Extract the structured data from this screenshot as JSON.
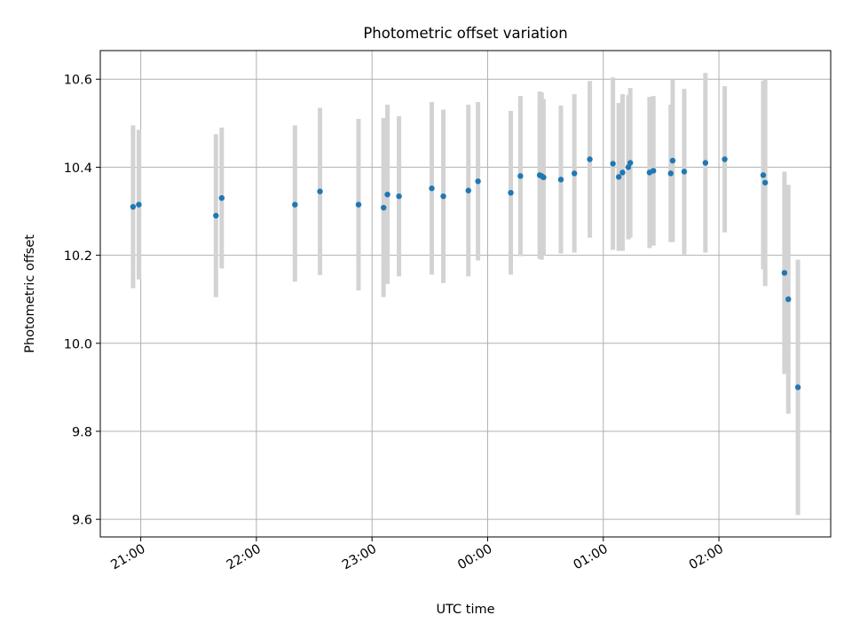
{
  "chart_data": {
    "type": "scatter",
    "title": "Photometric offset variation",
    "xlabel": "UTC time",
    "ylabel": "Photometric offset",
    "x_axis_type": "time",
    "xlim": [
      "20:39",
      "02:58"
    ],
    "ylim": [
      9.56,
      10.665
    ],
    "x_ticks": [
      "21:00",
      "22:00",
      "23:00",
      "00:00",
      "01:00",
      "02:00"
    ],
    "y_ticks": [
      9.6,
      9.8,
      10.0,
      10.2,
      10.4,
      10.6
    ],
    "y_tick_labels": [
      "9.6",
      "9.8",
      "10.0",
      "10.2",
      "10.4",
      "10.6"
    ],
    "grid": true,
    "legend": "none",
    "marker_color": "#1f77b4",
    "errorbar_color": "#d3d3d3",
    "points": [
      {
        "x": "20:56",
        "y": 10.31,
        "err_low": 10.125,
        "err_high": 10.495
      },
      {
        "x": "20:59",
        "y": 10.315,
        "err_low": 10.145,
        "err_high": 10.485
      },
      {
        "x": "21:39",
        "y": 10.29,
        "err_low": 10.105,
        "err_high": 10.475
      },
      {
        "x": "21:42",
        "y": 10.33,
        "err_low": 10.17,
        "err_high": 10.49
      },
      {
        "x": "22:20",
        "y": 10.315,
        "err_low": 10.14,
        "err_high": 10.495
      },
      {
        "x": "22:33",
        "y": 10.345,
        "err_low": 10.155,
        "err_high": 10.535
      },
      {
        "x": "22:53",
        "y": 10.315,
        "err_low": 10.12,
        "err_high": 10.51
      },
      {
        "x": "23:06",
        "y": 10.308,
        "err_low": 10.105,
        "err_high": 10.512
      },
      {
        "x": "23:08",
        "y": 10.338,
        "err_low": 10.135,
        "err_high": 10.542
      },
      {
        "x": "23:14",
        "y": 10.334,
        "err_low": 10.152,
        "err_high": 10.516
      },
      {
        "x": "23:31",
        "y": 10.352,
        "err_low": 10.156,
        "err_high": 10.548
      },
      {
        "x": "23:37",
        "y": 10.334,
        "err_low": 10.137,
        "err_high": 10.531
      },
      {
        "x": "23:50",
        "y": 10.347,
        "err_low": 10.152,
        "err_high": 10.542
      },
      {
        "x": "23:55",
        "y": 10.368,
        "err_low": 10.188,
        "err_high": 10.548
      },
      {
        "x": "00:12",
        "y": 10.342,
        "err_low": 10.156,
        "err_high": 10.528
      },
      {
        "x": "00:17",
        "y": 10.38,
        "err_low": 10.198,
        "err_high": 10.562
      },
      {
        "x": "00:27",
        "y": 10.382,
        "err_low": 10.192,
        "err_high": 10.572
      },
      {
        "x": "00:28",
        "y": 10.38,
        "err_low": 10.19,
        "err_high": 10.57
      },
      {
        "x": "00:29",
        "y": 10.377,
        "err_low": 10.199,
        "err_high": 10.555
      },
      {
        "x": "00:38",
        "y": 10.372,
        "err_low": 10.204,
        "err_high": 10.54
      },
      {
        "x": "00:45",
        "y": 10.386,
        "err_low": 10.206,
        "err_high": 10.566
      },
      {
        "x": "00:53",
        "y": 10.418,
        "err_low": 10.24,
        "err_high": 10.596
      },
      {
        "x": "01:05",
        "y": 10.408,
        "err_low": 10.212,
        "err_high": 10.604
      },
      {
        "x": "01:08",
        "y": 10.378,
        "err_low": 10.21,
        "err_high": 10.546
      },
      {
        "x": "01:10",
        "y": 10.388,
        "err_low": 10.21,
        "err_high": 10.566
      },
      {
        "x": "01:13",
        "y": 10.4,
        "err_low": 10.236,
        "err_high": 10.564
      },
      {
        "x": "01:14",
        "y": 10.41,
        "err_low": 10.24,
        "err_high": 10.58
      },
      {
        "x": "01:24",
        "y": 10.388,
        "err_low": 10.216,
        "err_high": 10.56
      },
      {
        "x": "01:26",
        "y": 10.392,
        "err_low": 10.222,
        "err_high": 10.562
      },
      {
        "x": "01:35",
        "y": 10.386,
        "err_low": 10.23,
        "err_high": 10.542
      },
      {
        "x": "01:36",
        "y": 10.415,
        "err_low": 10.23,
        "err_high": 10.6
      },
      {
        "x": "01:42",
        "y": 10.39,
        "err_low": 10.202,
        "err_high": 10.578
      },
      {
        "x": "01:53",
        "y": 10.41,
        "err_low": 10.206,
        "err_high": 10.614
      },
      {
        "x": "02:03",
        "y": 10.418,
        "err_low": 10.252,
        "err_high": 10.584
      },
      {
        "x": "02:23",
        "y": 10.382,
        "err_low": 10.168,
        "err_high": 10.596
      },
      {
        "x": "02:24",
        "y": 10.365,
        "err_low": 10.13,
        "err_high": 10.6
      },
      {
        "x": "02:34",
        "y": 10.16,
        "err_low": 9.93,
        "err_high": 10.39
      },
      {
        "x": "02:36",
        "y": 10.1,
        "err_low": 9.84,
        "err_high": 10.36
      },
      {
        "x": "02:41",
        "y": 9.9,
        "err_low": 9.61,
        "err_high": 10.19
      }
    ]
  }
}
